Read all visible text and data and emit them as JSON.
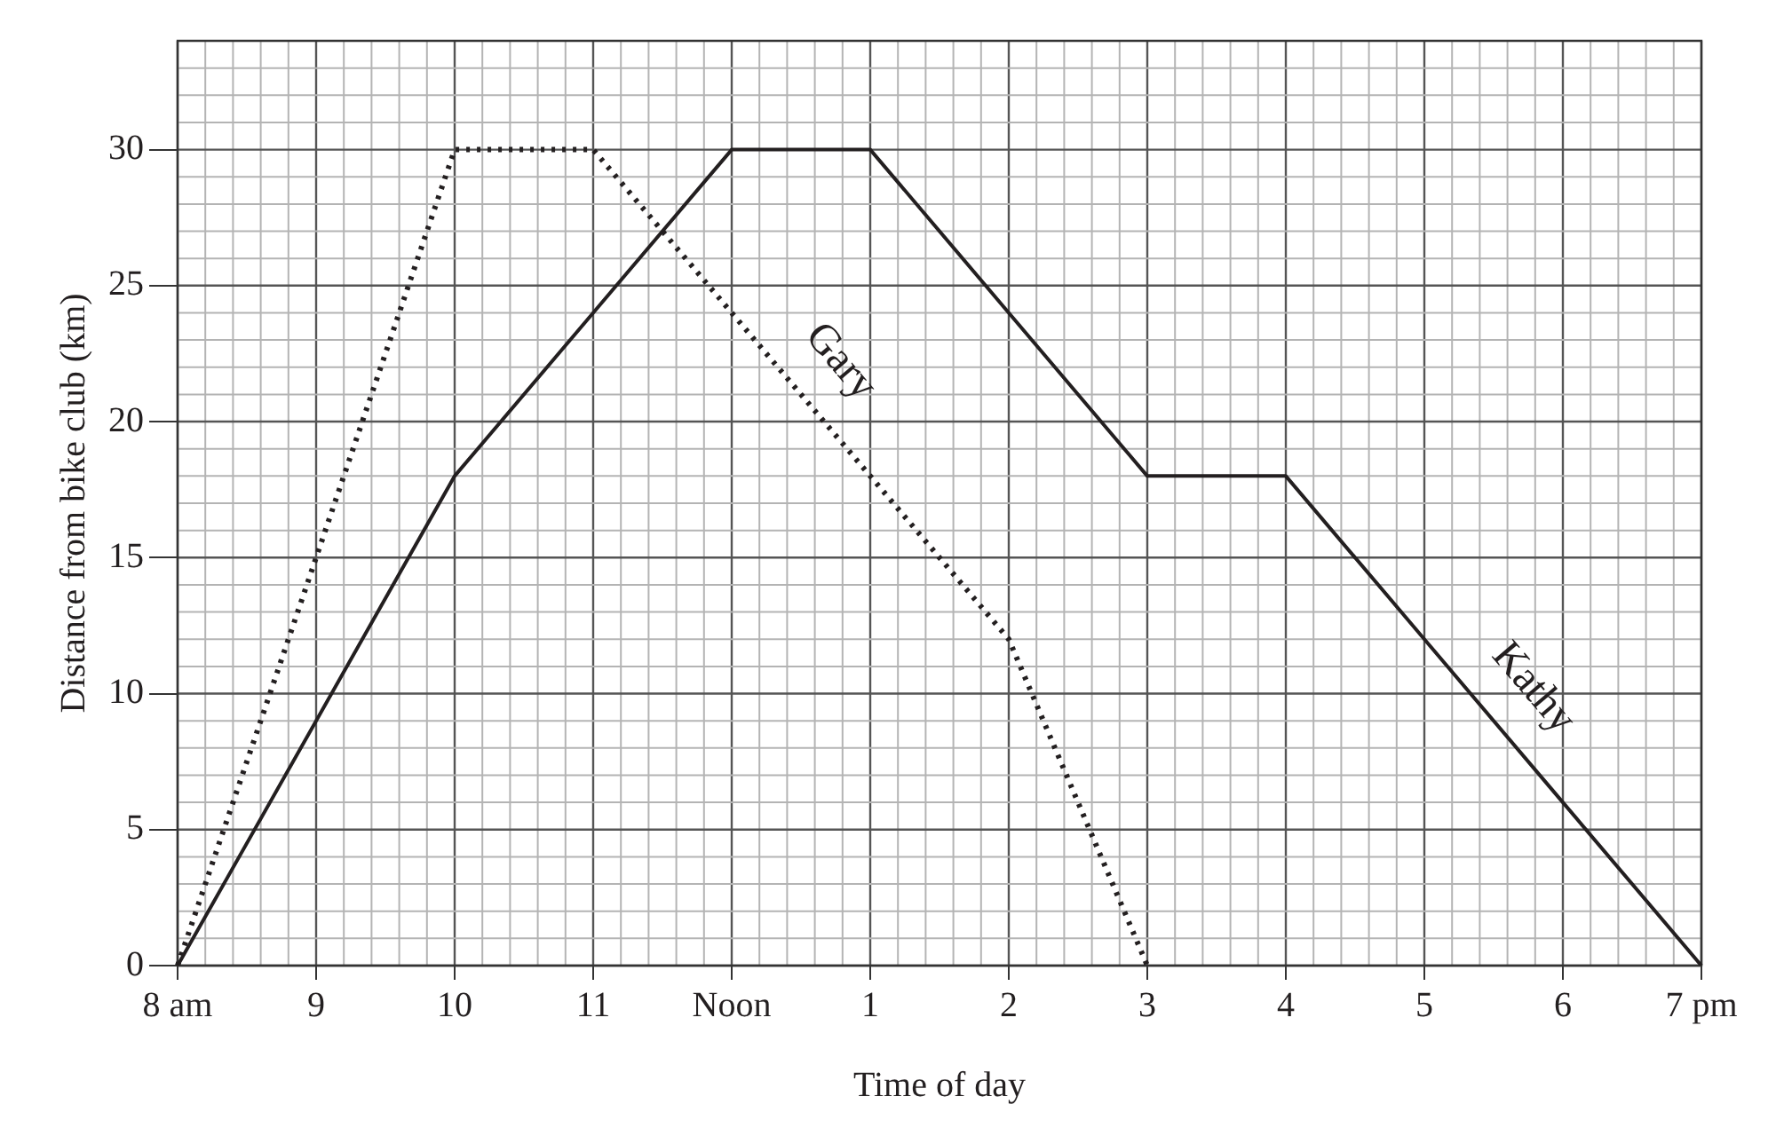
{
  "chart_data": {
    "type": "line",
    "xlabel": "Time of day",
    "ylabel": "Distance from bike club (km)",
    "categories": [
      "8 am",
      "9",
      "10",
      "11",
      "Noon",
      "1",
      "2",
      "3",
      "4",
      "5",
      "6",
      "7 pm"
    ],
    "ylim": [
      0,
      34
    ],
    "yticks": [
      0,
      5,
      10,
      15,
      20,
      25,
      30
    ],
    "grid": true,
    "legend": false,
    "marker": "none",
    "series": [
      {
        "name": "Gary",
        "color": "#231f20",
        "line_style": "dotted",
        "values": [
          0,
          15,
          30,
          30,
          24,
          18,
          12,
          0,
          null,
          null,
          null,
          null
        ]
      },
      {
        "name": "Kathy",
        "color": "#231f20",
        "line_style": "solid",
        "values": [
          0,
          9,
          18,
          24,
          30,
          30,
          24,
          18,
          18,
          12,
          6,
          0
        ]
      }
    ]
  }
}
